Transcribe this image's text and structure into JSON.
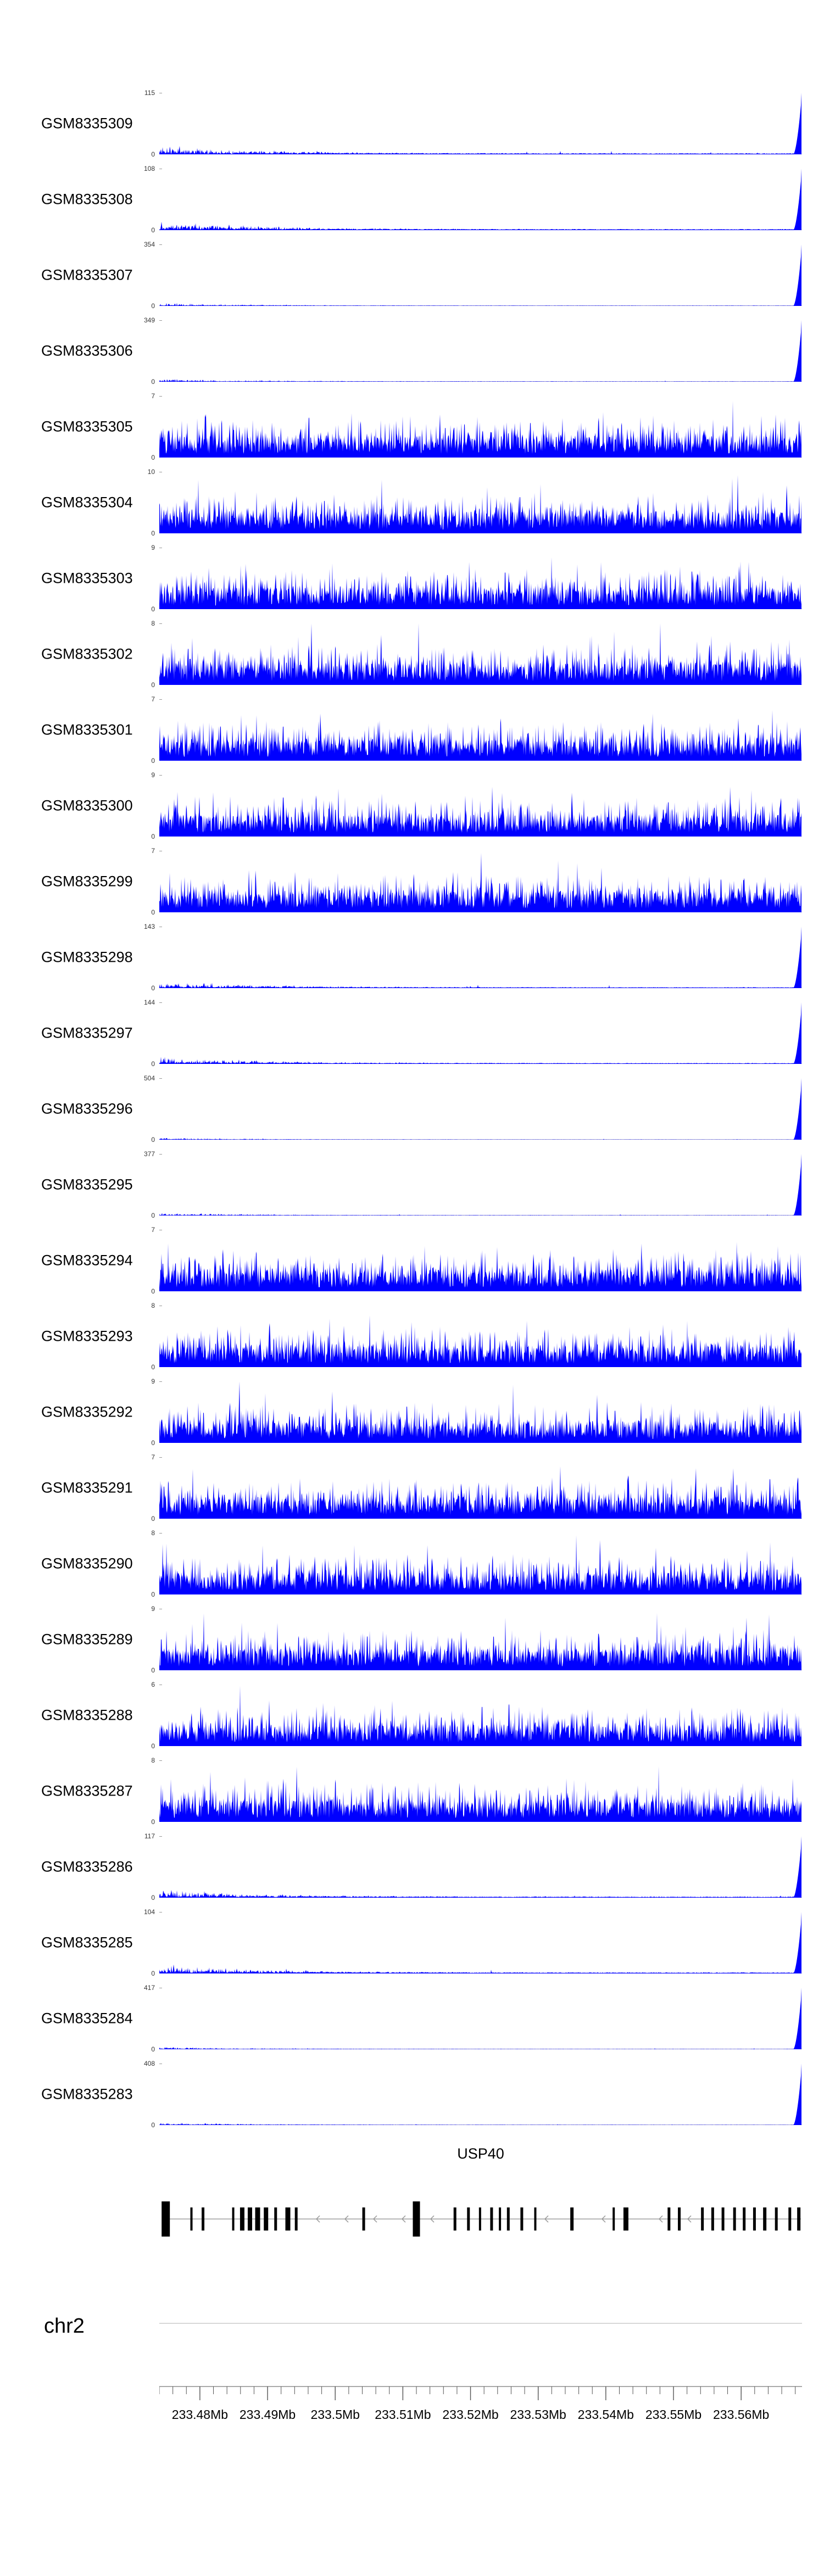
{
  "figure": {
    "background_color": "#ffffff",
    "kind": "genome coverage track view"
  },
  "chart_data": {
    "type": "area",
    "accent_color": "#0000ff",
    "grid": false,
    "tracks": [
      {
        "label": "GSM8335309",
        "ymax": 115,
        "ymin": 0,
        "pattern": "spike-right",
        "seed": 11
      },
      {
        "label": "GSM8335308",
        "ymax": 108,
        "ymin": 0,
        "pattern": "spike-right",
        "seed": 12
      },
      {
        "label": "GSM8335307",
        "ymax": 354,
        "ymin": 0,
        "pattern": "spike-right",
        "seed": 13
      },
      {
        "label": "GSM8335306",
        "ymax": 349,
        "ymin": 0,
        "pattern": "spike-right",
        "seed": 14
      },
      {
        "label": "GSM8335305",
        "ymax": 7,
        "ymin": 0,
        "pattern": "dense",
        "seed": 15
      },
      {
        "label": "GSM8335304",
        "ymax": 10,
        "ymin": 0,
        "pattern": "dense",
        "seed": 16
      },
      {
        "label": "GSM8335303",
        "ymax": 9,
        "ymin": 0,
        "pattern": "dense",
        "seed": 17
      },
      {
        "label": "GSM8335302",
        "ymax": 8,
        "ymin": 0,
        "pattern": "dense",
        "seed": 18
      },
      {
        "label": "GSM8335301",
        "ymax": 7,
        "ymin": 0,
        "pattern": "dense",
        "seed": 19
      },
      {
        "label": "GSM8335300",
        "ymax": 9,
        "ymin": 0,
        "pattern": "dense",
        "seed": 20
      },
      {
        "label": "GSM8335299",
        "ymax": 7,
        "ymin": 0,
        "pattern": "dense",
        "seed": 21
      },
      {
        "label": "GSM8335298",
        "ymax": 143,
        "ymin": 0,
        "pattern": "spike-right",
        "seed": 22
      },
      {
        "label": "GSM8335297",
        "ymax": 144,
        "ymin": 0,
        "pattern": "spike-right",
        "seed": 23
      },
      {
        "label": "GSM8335296",
        "ymax": 504,
        "ymin": 0,
        "pattern": "spike-right",
        "seed": 24
      },
      {
        "label": "GSM8335295",
        "ymax": 377,
        "ymin": 0,
        "pattern": "spike-right",
        "seed": 25
      },
      {
        "label": "GSM8335294",
        "ymax": 7,
        "ymin": 0,
        "pattern": "dense",
        "seed": 26
      },
      {
        "label": "GSM8335293",
        "ymax": 8,
        "ymin": 0,
        "pattern": "dense",
        "seed": 27
      },
      {
        "label": "GSM8335292",
        "ymax": 9,
        "ymin": 0,
        "pattern": "dense",
        "seed": 28
      },
      {
        "label": "GSM8335291",
        "ymax": 7,
        "ymin": 0,
        "pattern": "dense",
        "seed": 29
      },
      {
        "label": "GSM8335290",
        "ymax": 8,
        "ymin": 0,
        "pattern": "dense",
        "seed": 30
      },
      {
        "label": "GSM8335289",
        "ymax": 9,
        "ymin": 0,
        "pattern": "dense",
        "seed": 31
      },
      {
        "label": "GSM8335288",
        "ymax": 6,
        "ymin": 0,
        "pattern": "dense",
        "seed": 32
      },
      {
        "label": "GSM8335287",
        "ymax": 8,
        "ymin": 0,
        "pattern": "dense",
        "seed": 33
      },
      {
        "label": "GSM8335286",
        "ymax": 117,
        "ymin": 0,
        "pattern": "spike-right",
        "seed": 34
      },
      {
        "label": "GSM8335285",
        "ymax": 104,
        "ymin": 0,
        "pattern": "spike-right",
        "seed": 35
      },
      {
        "label": "GSM8335284",
        "ymax": 417,
        "ymin": 0,
        "pattern": "spike-right",
        "seed": 36
      },
      {
        "label": "GSM8335283",
        "ymax": 408,
        "ymin": 0,
        "pattern": "spike-right",
        "seed": 37
      }
    ],
    "gene_track": {
      "name": "USP40",
      "strand": "minus",
      "exon_color": "#000000",
      "line_color": "#8a8a8a",
      "arrow_color": "#999999",
      "exons": [
        [
          0.01,
          15,
          2
        ],
        [
          0.05,
          4,
          1
        ],
        [
          0.068,
          5,
          1
        ],
        [
          0.115,
          4,
          1
        ],
        [
          0.129,
          8,
          1
        ],
        [
          0.141,
          8,
          1
        ],
        [
          0.153,
          9,
          1
        ],
        [
          0.166,
          8,
          1
        ],
        [
          0.181,
          5,
          1
        ],
        [
          0.2,
          9,
          1
        ],
        [
          0.213,
          5,
          1
        ],
        [
          0.318,
          5,
          1
        ],
        [
          0.4,
          13,
          2
        ],
        [
          0.46,
          5,
          1
        ],
        [
          0.481,
          5,
          1
        ],
        [
          0.499,
          4,
          1
        ],
        [
          0.517,
          5,
          1
        ],
        [
          0.53,
          4,
          1
        ],
        [
          0.543,
          5,
          1
        ],
        [
          0.564,
          5,
          1
        ],
        [
          0.585,
          4,
          1
        ],
        [
          0.642,
          6,
          1
        ],
        [
          0.707,
          4,
          1
        ],
        [
          0.726,
          9,
          1
        ],
        [
          0.793,
          5,
          1
        ],
        [
          0.809,
          5,
          1
        ],
        [
          0.845,
          5,
          1
        ],
        [
          0.861,
          5,
          1
        ],
        [
          0.877,
          5,
          1
        ],
        [
          0.895,
          5,
          1
        ],
        [
          0.91,
          5,
          1
        ],
        [
          0.926,
          5,
          1
        ],
        [
          0.942,
          6,
          1
        ],
        [
          0.96,
          5,
          1
        ],
        [
          0.981,
          5,
          1
        ],
        [
          0.995,
          6,
          1
        ]
      ]
    },
    "axis": {
      "chromosome": "chr2",
      "start_mb": 233.474,
      "end_mb": 233.569,
      "minor_tick_step_mb": 0.002,
      "major_ticks": [
        {
          "pos_mb": 233.48,
          "label": "233.48Mb"
        },
        {
          "pos_mb": 233.49,
          "label": "233.49Mb"
        },
        {
          "pos_mb": 233.5,
          "label": "233.5Mb"
        },
        {
          "pos_mb": 233.51,
          "label": "233.51Mb"
        },
        {
          "pos_mb": 233.52,
          "label": "233.52Mb"
        },
        {
          "pos_mb": 233.53,
          "label": "233.53Mb"
        },
        {
          "pos_mb": 233.54,
          "label": "233.54Mb"
        },
        {
          "pos_mb": 233.55,
          "label": "233.55Mb"
        },
        {
          "pos_mb": 233.56,
          "label": "233.56Mb"
        }
      ]
    }
  }
}
